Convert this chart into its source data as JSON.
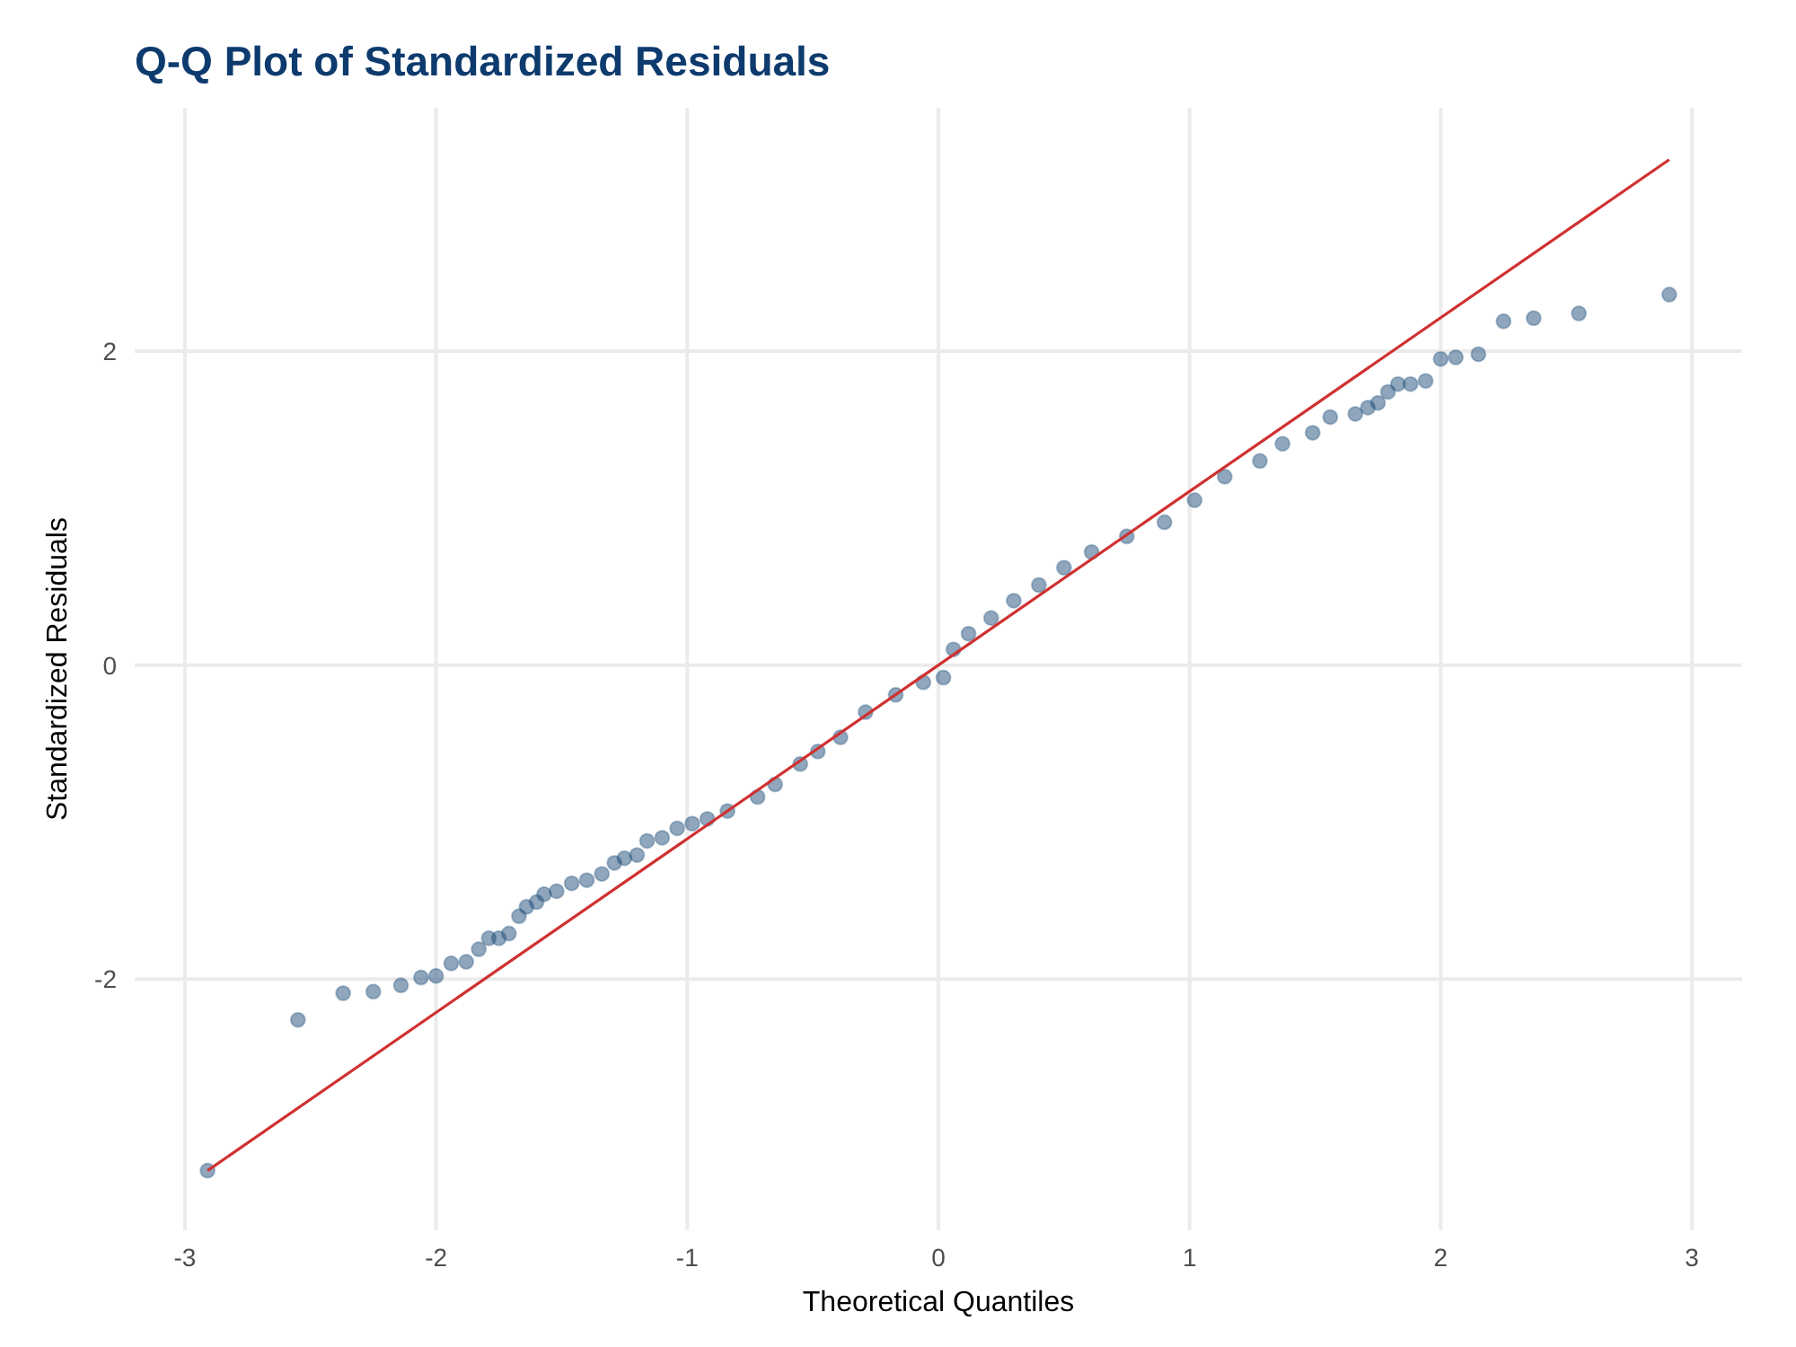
{
  "chart_data": {
    "type": "scatter",
    "title": "Q-Q Plot of Standardized Residuals",
    "xlabel": "Theoretical Quantiles",
    "ylabel": "Standardized Residuals",
    "xlim": [
      -3.2,
      3.2
    ],
    "ylim": [
      -3.6,
      3.55
    ],
    "xticks": [
      -3,
      -2,
      -1,
      0,
      1,
      2,
      3
    ],
    "yticks": [
      -2,
      0,
      2
    ],
    "grid": true,
    "marker": "circle",
    "series": [
      {
        "color": "#1f4e79",
        "x": [
          -2.91,
          -2.55,
          -2.37,
          -2.25,
          -2.14,
          -2.06,
          -2.0,
          -1.94,
          -1.88,
          -1.83,
          -1.79,
          -1.75,
          -1.71,
          -1.67,
          -1.64,
          -1.6,
          -1.57,
          -1.52,
          -1.46,
          -1.4,
          -1.34,
          -1.29,
          -1.25,
          -1.2,
          -1.16,
          -1.1,
          -1.04,
          -0.98,
          -0.92,
          -0.84,
          -0.72,
          -0.65,
          -0.55,
          -0.48,
          -0.39,
          -0.29,
          -0.17,
          -0.06,
          0.02,
          0.06,
          0.12,
          0.21,
          0.3,
          0.4,
          0.5,
          0.61,
          0.75,
          0.9,
          1.02,
          1.14,
          1.28,
          1.37,
          1.49,
          1.56,
          1.66,
          1.71,
          1.75,
          1.79,
          1.83,
          1.88,
          1.94,
          2.0,
          2.06,
          2.15,
          2.25,
          2.37,
          2.55,
          2.91
        ],
        "values": [
          -3.22,
          -2.26,
          -2.09,
          -2.08,
          -2.04,
          -1.99,
          -1.98,
          -1.9,
          -1.89,
          -1.81,
          -1.74,
          -1.74,
          -1.71,
          -1.6,
          -1.54,
          -1.51,
          -1.46,
          -1.44,
          -1.39,
          -1.37,
          -1.33,
          -1.26,
          -1.23,
          -1.21,
          -1.12,
          -1.1,
          -1.04,
          -1.01,
          -0.98,
          -0.93,
          -0.84,
          -0.76,
          -0.63,
          -0.55,
          -0.46,
          -0.3,
          -0.19,
          -0.11,
          -0.08,
          0.1,
          0.2,
          0.3,
          0.41,
          0.51,
          0.62,
          0.72,
          0.82,
          0.91,
          1.05,
          1.2,
          1.3,
          1.41,
          1.48,
          1.58,
          1.6,
          1.64,
          1.67,
          1.74,
          1.79,
          1.79,
          1.81,
          1.95,
          1.96,
          1.98,
          2.19,
          2.21,
          2.24,
          2.36
        ]
      },
      {
        "type": "line",
        "marker": "none",
        "color": "#d03030",
        "x": [
          -2.91,
          2.91
        ],
        "values": [
          -3.22,
          3.22
        ]
      }
    ]
  }
}
